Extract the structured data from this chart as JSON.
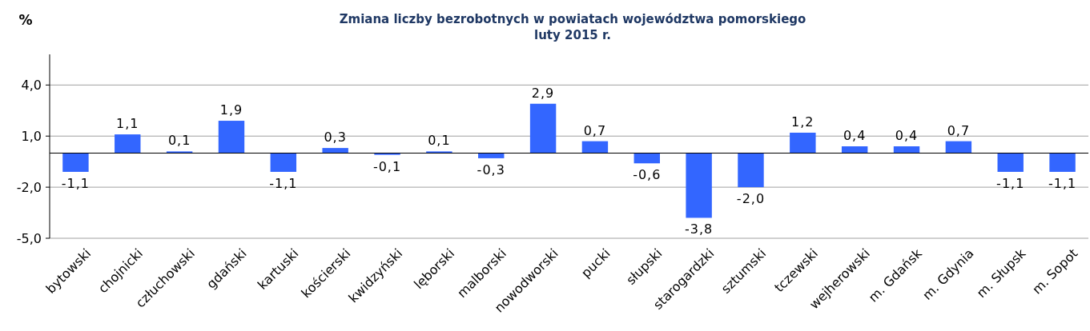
{
  "chart_data": {
    "type": "bar",
    "title": "Zmiana liczby bezrobotnych  w  powiatach województwa pomorskiego",
    "subtitle": "luty 2015 r.",
    "ylabel": "%",
    "categories": [
      "bytowski",
      "chojnicki",
      "człuchowski",
      "gdański",
      "kartuski",
      "kościerski",
      "kwidzyński",
      "lęborski",
      "malborski",
      "nowodworski",
      "pucki",
      "słupski",
      "starogardzki",
      "sztumski",
      "tczewski",
      "wejherowski",
      "m. Gdańsk",
      "m. Gdynia",
      "m. Słupsk",
      "m. Sopot"
    ],
    "values": [
      -1.1,
      1.1,
      0.1,
      1.9,
      -1.1,
      0.3,
      -0.1,
      0.1,
      -0.3,
      2.9,
      0.7,
      -0.6,
      -3.8,
      -2.0,
      1.2,
      0.4,
      0.4,
      0.7,
      -1.1,
      -1.1
    ],
    "value_labels": [
      "-1,1",
      "1,1",
      "0,1",
      "1,9",
      "-1,1",
      "0,3",
      "-0,1",
      "0,1",
      "-0,3",
      "2,9",
      "0,7",
      "-0,6",
      "-3,8",
      "-2,0",
      "1,2",
      "0,4",
      "0,4",
      "0,7",
      "-1,1",
      "-1,1"
    ],
    "color": "#3366ff",
    "ylim": [
      -5,
      5.8
    ],
    "yticks": [
      {
        "value": 4,
        "label": "4,0"
      },
      {
        "value": 1,
        "label": "1,0"
      },
      {
        "value": -2,
        "label": "-2,0"
      },
      {
        "value": -5,
        "label": "-5,0"
      }
    ],
    "grid": "y"
  }
}
